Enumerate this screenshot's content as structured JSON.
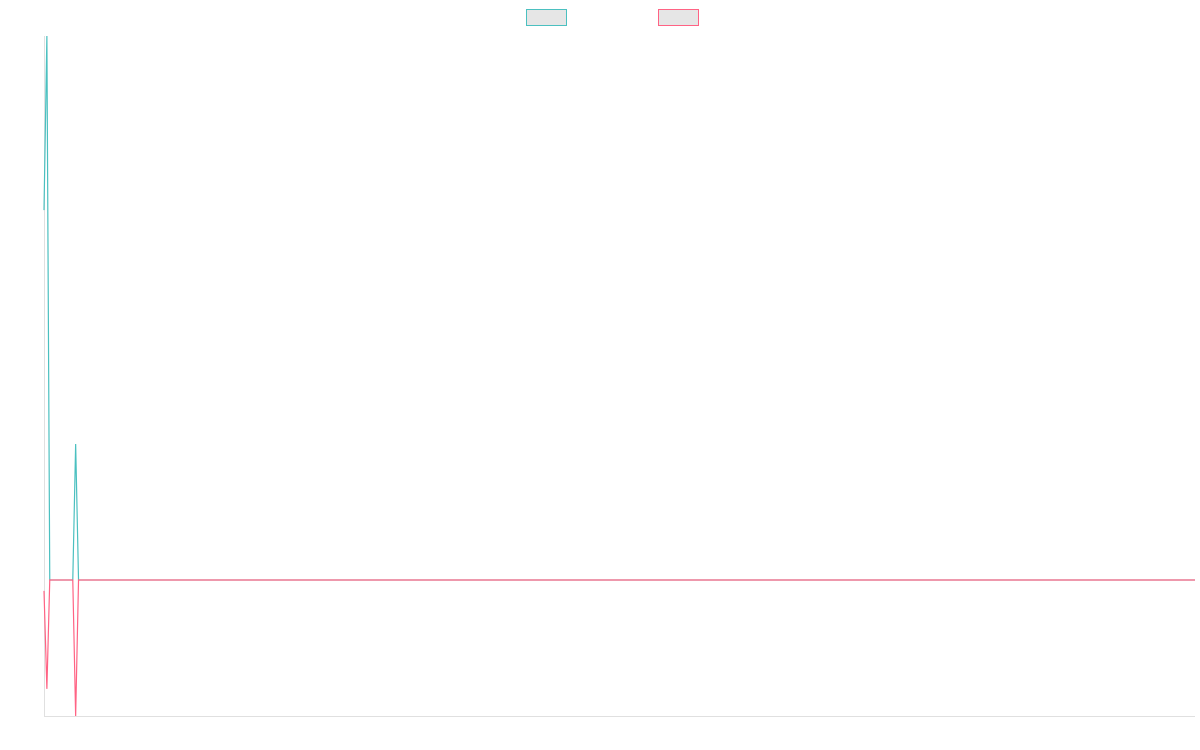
{
  "chart_data": {
    "type": "line",
    "x": [
      0,
      1,
      2,
      10,
      11,
      12,
      400
    ],
    "xlim": [
      0,
      400
    ],
    "ylim": [
      -0.25,
      1
    ],
    "grid": false,
    "legend": "top",
    "series": [
      {
        "color": "#4bc0c0",
        "values": [
          0.68,
          1,
          0,
          0,
          0.25,
          0,
          0
        ]
      },
      {
        "color": "#ff6384",
        "values": [
          -0.02,
          -0.2,
          0,
          0,
          -0.25,
          0,
          0
        ]
      }
    ]
  }
}
